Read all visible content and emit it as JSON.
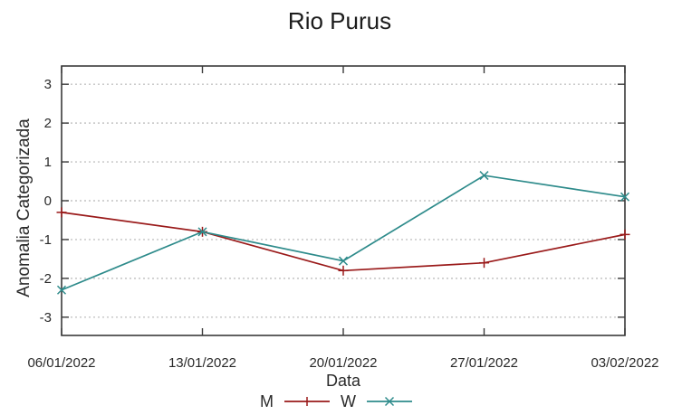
{
  "chart_data": {
    "type": "line",
    "title": "Rio Purus",
    "xlabel": "Data",
    "ylabel": "Anomalia Categorizada",
    "categories": [
      "06/01/2022",
      "13/01/2022",
      "20/01/2022",
      "27/01/2022",
      "03/02/2022"
    ],
    "series": [
      {
        "name": "M",
        "color": "#9a1a1a",
        "marker": "plus",
        "values": [
          -0.3,
          -0.8,
          -1.8,
          -1.6,
          -0.87
        ]
      },
      {
        "name": "W",
        "color": "#2e8b8b",
        "marker": "cross",
        "values": [
          -2.3,
          -0.8,
          -1.55,
          0.65,
          0.1
        ]
      }
    ],
    "y_ticks": [
      -3,
      -2,
      -1,
      0,
      1,
      2,
      3
    ],
    "ylim": [
      -3.47,
      3.47
    ],
    "grid": "horizontal-dashed",
    "legend_position": "bottom-center",
    "colors": {
      "axis": "#3a3a3a",
      "grid": "#c4c4c4",
      "text": "#2a2a2a",
      "background": "#ffffff"
    }
  }
}
